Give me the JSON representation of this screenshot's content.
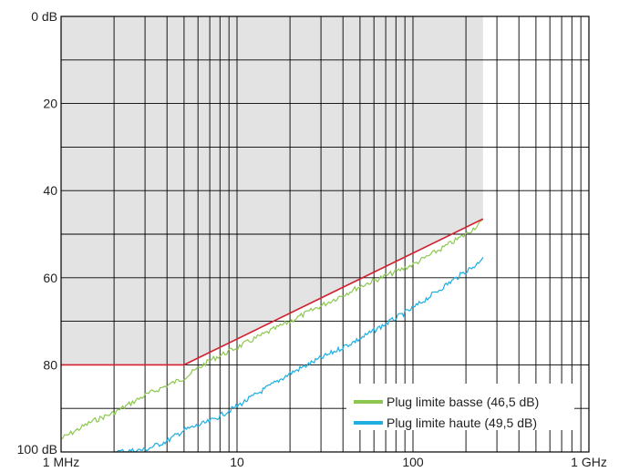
{
  "chart_data": {
    "type": "line",
    "title": "",
    "xlabel": "",
    "ylabel": "",
    "x_scale": "log",
    "x_unit": "MHz",
    "xlim": [
      1,
      1000
    ],
    "ylim": [
      0,
      100
    ],
    "y_inverted": true,
    "grid": true,
    "legend_position": "bottom-right",
    "x_ticks": [
      {
        "value": 1,
        "label": "1 MHz"
      },
      {
        "value": 10,
        "label": "10"
      },
      {
        "value": 100,
        "label": "100"
      },
      {
        "value": 1000,
        "label": "1 GHz"
      }
    ],
    "y_ticks": [
      {
        "value": 0,
        "label": "0 dB"
      },
      {
        "value": 20,
        "label": "20"
      },
      {
        "value": 40,
        "label": "40"
      },
      {
        "value": 60,
        "label": "60"
      },
      {
        "value": 80,
        "label": "80"
      },
      {
        "value": 100,
        "label": "100 dB"
      }
    ],
    "shaded_region": {
      "color": "#e3e3e3",
      "boundary_x": [
        1,
        5,
        250
      ],
      "boundary_y": [
        80,
        80,
        46.5
      ]
    },
    "limit_line": {
      "color": "#d42030",
      "x": [
        1,
        5,
        250
      ],
      "y": [
        80,
        80,
        46.5
      ]
    },
    "series": [
      {
        "name": "Plug limite basse (46,5 dB)",
        "color": "#8cc850",
        "x": [
          1,
          1.5,
          2,
          3,
          5,
          7,
          10,
          20,
          50,
          100,
          150,
          200,
          250
        ],
        "y": [
          97,
          93,
          91,
          87,
          83,
          79,
          76,
          70,
          62,
          57,
          53,
          50,
          47
        ]
      },
      {
        "name": "Plug limite haute (49,5 dB)",
        "color": "#1eaee0",
        "x": [
          2,
          3,
          4,
          5,
          7,
          10,
          20,
          50,
          100,
          150,
          200,
          230,
          250
        ],
        "y": [
          100,
          99.5,
          97.5,
          95,
          93,
          89.5,
          82,
          74,
          67,
          62,
          58.5,
          57,
          55
        ]
      }
    ]
  }
}
